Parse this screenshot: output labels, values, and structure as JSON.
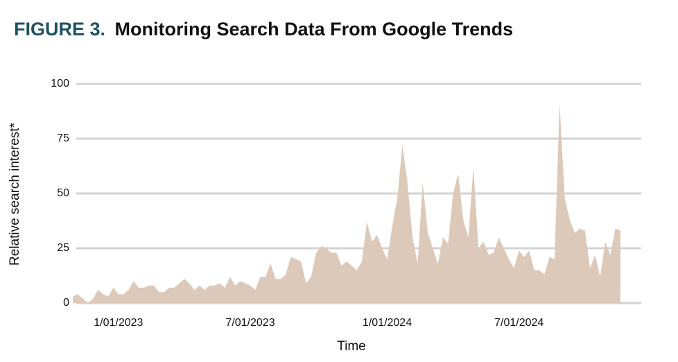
{
  "chart_data": {
    "type": "area",
    "title_prefix": "FIGURE 3.",
    "title": "Monitoring Search Data From Google Trends",
    "ylabel": "Relative search interest*",
    "xlabel": "Time",
    "ylim": [
      0,
      100
    ],
    "yticks": [
      0,
      25,
      50,
      75,
      100
    ],
    "grid": true,
    "categories": [
      null,
      null,
      null,
      null,
      null,
      null,
      null,
      null,
      null,
      "1/01/2023",
      null,
      null,
      null,
      null,
      null,
      null,
      null,
      null,
      null,
      null,
      null,
      null,
      null,
      null,
      null,
      null,
      null,
      null,
      null,
      null,
      null,
      null,
      null,
      null,
      null,
      "7/01/2023",
      null,
      null,
      null,
      null,
      null,
      null,
      null,
      null,
      null,
      null,
      null,
      null,
      null,
      null,
      null,
      null,
      null,
      null,
      null,
      null,
      null,
      null,
      null,
      null,
      null,
      null,
      "1/01/2024",
      null,
      null,
      null,
      null,
      null,
      null,
      null,
      null,
      null,
      null,
      null,
      null,
      null,
      null,
      null,
      null,
      null,
      null,
      null,
      null,
      null,
      null,
      null,
      null,
      null,
      "7/01/2024",
      null,
      null,
      null,
      null,
      null,
      null,
      null,
      null,
      null,
      null,
      null,
      null,
      null,
      null,
      null,
      null,
      null,
      null,
      null,
      null
    ],
    "series": [
      {
        "name": "Search interest",
        "color": "#dcc9b9",
        "values": [
          3,
          4,
          2,
          0,
          2,
          6,
          4,
          3,
          7,
          4,
          4,
          6,
          10,
          7,
          7,
          8,
          8,
          5,
          5,
          7,
          7,
          9,
          11,
          9,
          6,
          8,
          6,
          8,
          8,
          9,
          7,
          12,
          8,
          10,
          9,
          8,
          6,
          12,
          12,
          18,
          11,
          11,
          13,
          21,
          20,
          19,
          9,
          12,
          23,
          26,
          25,
          23,
          23,
          17,
          19,
          17,
          15,
          19,
          37,
          28,
          31,
          25,
          20,
          35,
          48,
          72,
          55,
          30,
          18,
          55,
          32,
          25,
          18,
          30,
          27,
          50,
          59,
          38,
          30,
          62,
          25,
          28,
          22,
          23,
          30,
          25,
          20,
          16,
          24,
          21,
          24,
          15,
          15,
          13,
          21,
          20,
          91,
          48,
          38,
          32,
          34,
          33,
          16,
          22,
          12,
          28,
          22,
          34,
          33
        ]
      }
    ]
  }
}
